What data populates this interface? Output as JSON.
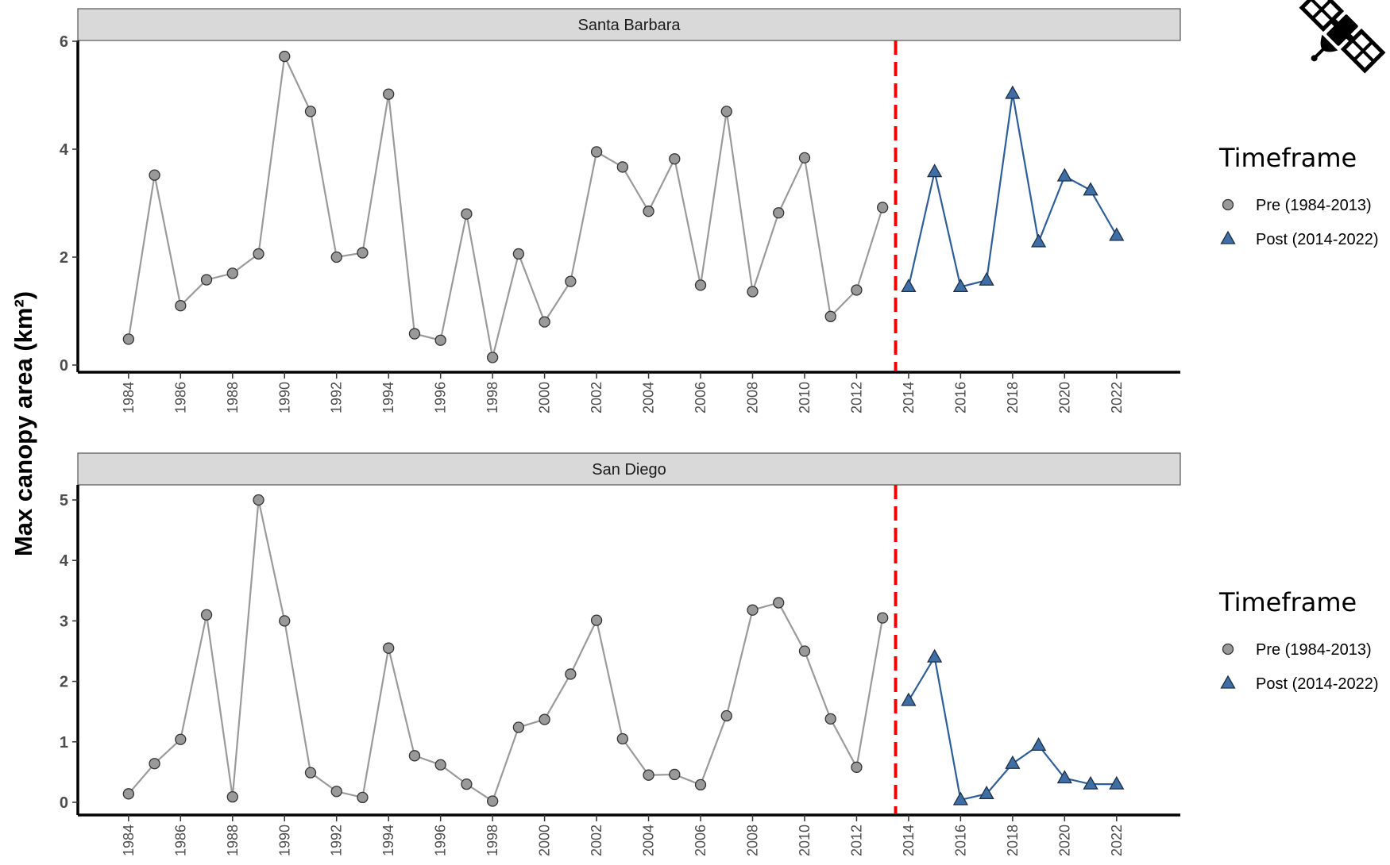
{
  "chart_data": {
    "type": "line",
    "ylabel": "Max canopy area (km²)",
    "xlabel": "",
    "x_ticks": [
      1984,
      1986,
      1988,
      1990,
      1992,
      1994,
      1996,
      1998,
      2000,
      2002,
      2004,
      2006,
      2008,
      2010,
      2012,
      2014,
      2016,
      2018,
      2020,
      2022
    ],
    "vline": {
      "x": 2013.5,
      "color": "#ee0000",
      "style": "dashed"
    },
    "legend": {
      "title": "Timeframe",
      "position": "right",
      "entries": [
        {
          "label": "Pre (1984-2013)",
          "shape": "circle",
          "color": "#999999"
        },
        {
          "label": "Post (2014-2022)",
          "shape": "triangle",
          "color": "#3d6ea5"
        }
      ]
    },
    "colors": {
      "pre": "#999999",
      "pre_line": "#9a9a9a",
      "post": "#3d6ea5",
      "post_line": "#2e5e97",
      "strip": "#d9d9d9"
    },
    "icon": "satellite-icon",
    "panels": [
      {
        "title": "Santa Barbara",
        "ylim": [
          0,
          6
        ],
        "y_ticks": [
          0,
          2,
          4,
          6
        ],
        "series": [
          {
            "name": "Pre (1984-2013)",
            "x": [
              1984,
              1985,
              1986,
              1987,
              1988,
              1989,
              1990,
              1991,
              1992,
              1993,
              1994,
              1995,
              1996,
              1997,
              1998,
              1999,
              2000,
              2001,
              2002,
              2003,
              2004,
              2005,
              2006,
              2007,
              2008,
              2009,
              2010,
              2011,
              2012,
              2013
            ],
            "y": [
              0.48,
              3.52,
              1.1,
              1.58,
              1.7,
              2.06,
              5.72,
              4.7,
              2.0,
              2.08,
              5.02,
              0.58,
              0.46,
              2.8,
              0.14,
              2.06,
              0.8,
              1.55,
              3.95,
              3.67,
              2.85,
              3.82,
              1.48,
              4.7,
              1.36,
              2.82,
              3.84,
              0.9,
              1.39,
              2.92
            ]
          },
          {
            "name": "Post (2014-2022)",
            "x": [
              2014,
              2015,
              2016,
              2017,
              2018,
              2019,
              2020,
              2021,
              2022
            ],
            "y": [
              1.45,
              3.58,
              1.45,
              1.57,
              5.03,
              2.28,
              3.5,
              3.24,
              2.4
            ]
          }
        ]
      },
      {
        "title": "San Diego",
        "ylim": [
          0,
          5
        ],
        "y_ticks": [
          0,
          1,
          2,
          3,
          4,
          5
        ],
        "series": [
          {
            "name": "Pre (1984-2013)",
            "x": [
              1984,
              1985,
              1986,
              1987,
              1988,
              1989,
              1990,
              1991,
              1992,
              1993,
              1994,
              1995,
              1996,
              1997,
              1998,
              1999,
              2000,
              2001,
              2002,
              2003,
              2004,
              2005,
              2006,
              2007,
              2008,
              2009,
              2010,
              2011,
              2012,
              2013
            ],
            "y": [
              0.14,
              0.64,
              1.04,
              3.1,
              0.09,
              5.0,
              3.0,
              0.49,
              0.18,
              0.08,
              2.55,
              0.77,
              0.62,
              0.3,
              0.02,
              1.24,
              1.37,
              2.12,
              3.01,
              1.05,
              0.45,
              0.46,
              0.29,
              1.43,
              3.18,
              3.3,
              2.5,
              1.38,
              0.58,
              3.05
            ]
          },
          {
            "name": "Post (2014-2022)",
            "x": [
              2014,
              2015,
              2016,
              2017,
              2018,
              2019,
              2020,
              2021,
              2022
            ],
            "y": [
              1.68,
              2.4,
              0.04,
              0.14,
              0.64,
              0.94,
              0.4,
              0.3,
              0.3
            ]
          }
        ]
      }
    ]
  }
}
